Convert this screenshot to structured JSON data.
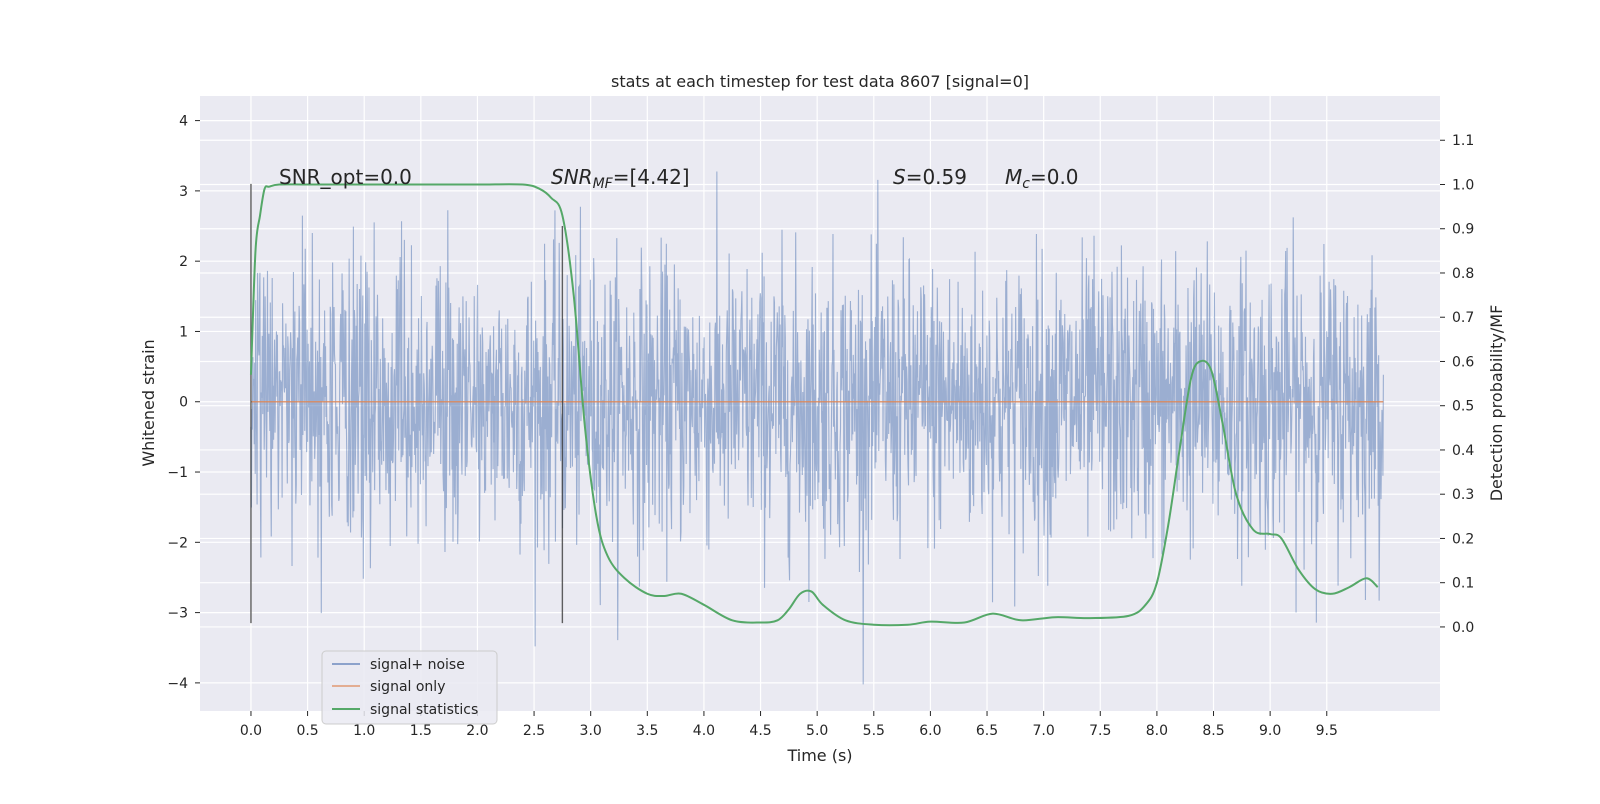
{
  "chart_data": {
    "type": "line",
    "title": "stats at each timestep for test data 8607 [signal=0]",
    "xlabel": "Time (s)",
    "ylabel": "Whitened strain",
    "y2label": "Detection probability/MF",
    "xlim": [
      -0.45,
      10.5
    ],
    "ylim": [
      -4.4,
      4.35
    ],
    "y2lim": [
      -0.19,
      1.2
    ],
    "x_ticks": [
      "0.0",
      "0.5",
      "1.0",
      "1.5",
      "2.0",
      "2.5",
      "3.0",
      "3.5",
      "4.0",
      "4.5",
      "5.0",
      "5.5",
      "6.0",
      "6.5",
      "7.0",
      "7.5",
      "8.0",
      "8.5",
      "9.0",
      "9.5"
    ],
    "y_ticks": [
      "−4",
      "−3",
      "−2",
      "−1",
      "0",
      "1",
      "2",
      "3",
      "4"
    ],
    "y2_ticks": [
      "0.0",
      "0.1",
      "0.2",
      "0.3",
      "0.4",
      "0.5",
      "0.6",
      "0.7",
      "0.8",
      "0.9",
      "1.0",
      "1.1"
    ],
    "grid": true,
    "legend_position": "lower-left",
    "annotations": {
      "snr_opt": "SNR_opt=0.0",
      "snr_mf_base": "SNR",
      "snr_mf_sub": "MF",
      "snr_mf_value": "=[4.42]",
      "s_symbol": "S",
      "s_value": "=0.59",
      "mc_symbol": "M",
      "mc_sub": "c",
      "mc_value": "=0.0"
    },
    "vertical_lines": [
      {
        "x": 0.0,
        "ymin": -3.15,
        "ymax": 3.1
      },
      {
        "x": 2.75,
        "ymin": -3.15,
        "ymax": 2.5
      }
    ],
    "series": [
      {
        "name": "signal+ noise",
        "color": "#4c72b0",
        "x_range": [
          0.0,
          10.0
        ],
        "y_range": [
          -4.1,
          4.0
        ]
      },
      {
        "name": "signal only",
        "color": "#dd8452",
        "x": [
          0.0,
          10.0
        ],
        "y": [
          0.0,
          0.0
        ]
      },
      {
        "name": "signal statistics",
        "color": "#55a868",
        "axis": "right",
        "x": [
          0.0,
          0.04,
          0.08,
          0.12,
          0.16,
          0.25,
          0.5,
          1.0,
          1.5,
          2.0,
          2.4,
          2.55,
          2.65,
          2.75,
          2.85,
          2.95,
          3.05,
          3.15,
          3.3,
          3.5,
          3.65,
          3.8,
          4.0,
          4.25,
          4.5,
          4.65,
          4.75,
          4.85,
          4.95,
          5.05,
          5.25,
          5.5,
          5.8,
          6.0,
          6.3,
          6.55,
          6.8,
          7.1,
          7.4,
          7.75,
          7.9,
          8.0,
          8.1,
          8.2,
          8.3,
          8.38,
          8.48,
          8.58,
          8.7,
          8.85,
          9.0,
          9.1,
          9.25,
          9.4,
          9.55,
          9.7,
          9.85,
          9.95
        ],
        "y": [
          0.57,
          0.85,
          0.93,
          0.99,
          0.995,
          1.0,
          1.0,
          1.0,
          1.0,
          1.0,
          1.0,
          0.99,
          0.97,
          0.93,
          0.75,
          0.45,
          0.25,
          0.16,
          0.11,
          0.075,
          0.07,
          0.075,
          0.05,
          0.015,
          0.01,
          0.015,
          0.04,
          0.075,
          0.08,
          0.05,
          0.015,
          0.005,
          0.005,
          0.012,
          0.01,
          0.03,
          0.015,
          0.022,
          0.02,
          0.025,
          0.05,
          0.1,
          0.23,
          0.4,
          0.56,
          0.6,
          0.58,
          0.46,
          0.3,
          0.22,
          0.21,
          0.2,
          0.13,
          0.085,
          0.075,
          0.09,
          0.11,
          0.09
        ]
      }
    ]
  }
}
